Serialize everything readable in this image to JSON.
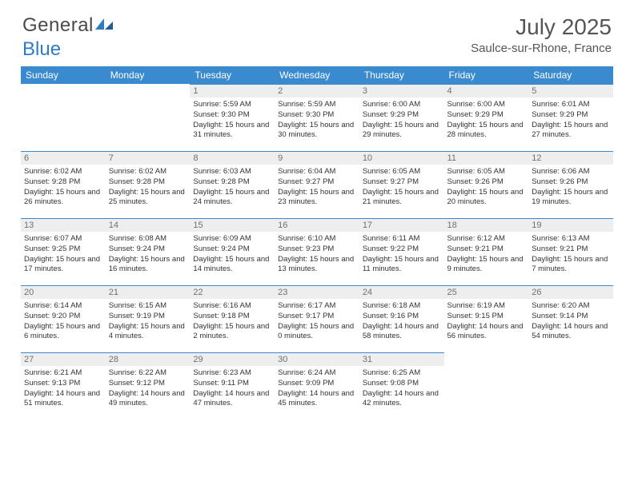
{
  "brand": {
    "part1": "General",
    "part2": "Blue"
  },
  "title": {
    "month": "July 2025",
    "location": "Saulce-sur-Rhone, France"
  },
  "colors": {
    "header_bg": "#3a8ad0",
    "header_text": "#ffffff",
    "daynum_bg": "#eeeeee",
    "daynum_text": "#707070",
    "body_text": "#333333",
    "logo_gray": "#4a4a4a",
    "logo_blue": "#2f7cc4"
  },
  "weekdays": [
    "Sunday",
    "Monday",
    "Tuesday",
    "Wednesday",
    "Thursday",
    "Friday",
    "Saturday"
  ],
  "layout": {
    "columns": 7,
    "rows": 5,
    "first_weekday_index": 2
  },
  "days": [
    {
      "n": 1,
      "sunrise": "5:59 AM",
      "sunset": "9:30 PM",
      "daylight": "15 hours and 31 minutes."
    },
    {
      "n": 2,
      "sunrise": "5:59 AM",
      "sunset": "9:30 PM",
      "daylight": "15 hours and 30 minutes."
    },
    {
      "n": 3,
      "sunrise": "6:00 AM",
      "sunset": "9:29 PM",
      "daylight": "15 hours and 29 minutes."
    },
    {
      "n": 4,
      "sunrise": "6:00 AM",
      "sunset": "9:29 PM",
      "daylight": "15 hours and 28 minutes."
    },
    {
      "n": 5,
      "sunrise": "6:01 AM",
      "sunset": "9:29 PM",
      "daylight": "15 hours and 27 minutes."
    },
    {
      "n": 6,
      "sunrise": "6:02 AM",
      "sunset": "9:28 PM",
      "daylight": "15 hours and 26 minutes."
    },
    {
      "n": 7,
      "sunrise": "6:02 AM",
      "sunset": "9:28 PM",
      "daylight": "15 hours and 25 minutes."
    },
    {
      "n": 8,
      "sunrise": "6:03 AM",
      "sunset": "9:28 PM",
      "daylight": "15 hours and 24 minutes."
    },
    {
      "n": 9,
      "sunrise": "6:04 AM",
      "sunset": "9:27 PM",
      "daylight": "15 hours and 23 minutes."
    },
    {
      "n": 10,
      "sunrise": "6:05 AM",
      "sunset": "9:27 PM",
      "daylight": "15 hours and 21 minutes."
    },
    {
      "n": 11,
      "sunrise": "6:05 AM",
      "sunset": "9:26 PM",
      "daylight": "15 hours and 20 minutes."
    },
    {
      "n": 12,
      "sunrise": "6:06 AM",
      "sunset": "9:26 PM",
      "daylight": "15 hours and 19 minutes."
    },
    {
      "n": 13,
      "sunrise": "6:07 AM",
      "sunset": "9:25 PM",
      "daylight": "15 hours and 17 minutes."
    },
    {
      "n": 14,
      "sunrise": "6:08 AM",
      "sunset": "9:24 PM",
      "daylight": "15 hours and 16 minutes."
    },
    {
      "n": 15,
      "sunrise": "6:09 AM",
      "sunset": "9:24 PM",
      "daylight": "15 hours and 14 minutes."
    },
    {
      "n": 16,
      "sunrise": "6:10 AM",
      "sunset": "9:23 PM",
      "daylight": "15 hours and 13 minutes."
    },
    {
      "n": 17,
      "sunrise": "6:11 AM",
      "sunset": "9:22 PM",
      "daylight": "15 hours and 11 minutes."
    },
    {
      "n": 18,
      "sunrise": "6:12 AM",
      "sunset": "9:21 PM",
      "daylight": "15 hours and 9 minutes."
    },
    {
      "n": 19,
      "sunrise": "6:13 AM",
      "sunset": "9:21 PM",
      "daylight": "15 hours and 7 minutes."
    },
    {
      "n": 20,
      "sunrise": "6:14 AM",
      "sunset": "9:20 PM",
      "daylight": "15 hours and 6 minutes."
    },
    {
      "n": 21,
      "sunrise": "6:15 AM",
      "sunset": "9:19 PM",
      "daylight": "15 hours and 4 minutes."
    },
    {
      "n": 22,
      "sunrise": "6:16 AM",
      "sunset": "9:18 PM",
      "daylight": "15 hours and 2 minutes."
    },
    {
      "n": 23,
      "sunrise": "6:17 AM",
      "sunset": "9:17 PM",
      "daylight": "15 hours and 0 minutes."
    },
    {
      "n": 24,
      "sunrise": "6:18 AM",
      "sunset": "9:16 PM",
      "daylight": "14 hours and 58 minutes."
    },
    {
      "n": 25,
      "sunrise": "6:19 AM",
      "sunset": "9:15 PM",
      "daylight": "14 hours and 56 minutes."
    },
    {
      "n": 26,
      "sunrise": "6:20 AM",
      "sunset": "9:14 PM",
      "daylight": "14 hours and 54 minutes."
    },
    {
      "n": 27,
      "sunrise": "6:21 AM",
      "sunset": "9:13 PM",
      "daylight": "14 hours and 51 minutes."
    },
    {
      "n": 28,
      "sunrise": "6:22 AM",
      "sunset": "9:12 PM",
      "daylight": "14 hours and 49 minutes."
    },
    {
      "n": 29,
      "sunrise": "6:23 AM",
      "sunset": "9:11 PM",
      "daylight": "14 hours and 47 minutes."
    },
    {
      "n": 30,
      "sunrise": "6:24 AM",
      "sunset": "9:09 PM",
      "daylight": "14 hours and 45 minutes."
    },
    {
      "n": 31,
      "sunrise": "6:25 AM",
      "sunset": "9:08 PM",
      "daylight": "14 hours and 42 minutes."
    }
  ],
  "labels": {
    "sunrise": "Sunrise:",
    "sunset": "Sunset:",
    "daylight": "Daylight:"
  }
}
